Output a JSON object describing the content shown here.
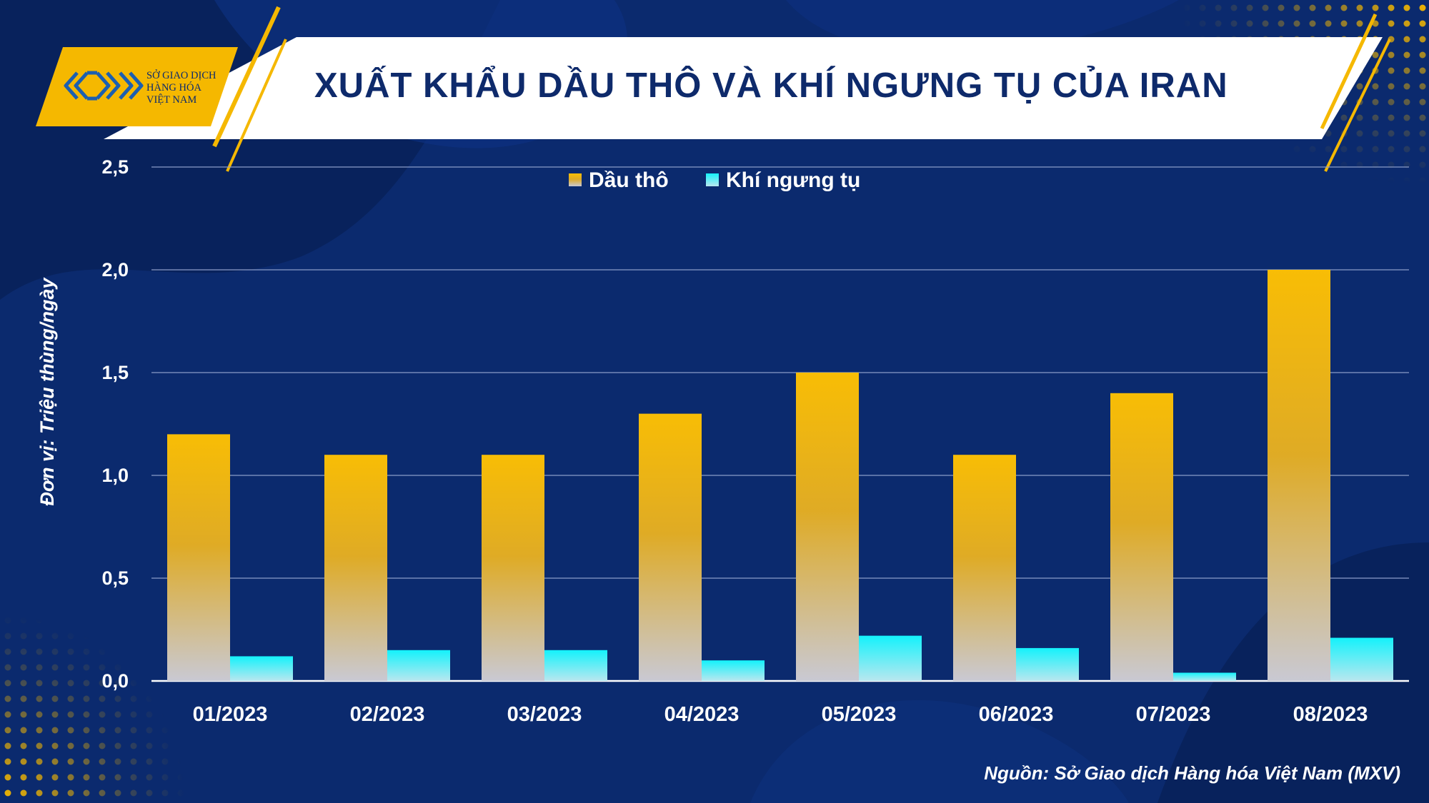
{
  "header": {
    "logo_lines": [
      "SỞ GIAO DỊCH",
      "HÀNG HÓA",
      "VIỆT NAM"
    ],
    "title": "XUẤT KHẨU DẦU THÔ VÀ KHÍ NGƯNG TỤ CỦA IRAN"
  },
  "colors": {
    "background": "#0b2a6e",
    "accent_gold": "#f5b800",
    "crude": "#f6bd06",
    "condensate": "#18f0f8",
    "title_text": "#0e2a6b"
  },
  "chart_data": {
    "type": "bar",
    "title": "XUẤT KHẨU DẦU THÔ VÀ KHÍ NGƯNG TỤ CỦA IRAN",
    "ylabel": "Đơn vị: Triệu thùng/ngày",
    "xlabel": "",
    "categories": [
      "01/2023",
      "02/2023",
      "03/2023",
      "04/2023",
      "05/2023",
      "06/2023",
      "07/2023",
      "08/2023"
    ],
    "series": [
      {
        "name": "Dầu thô",
        "color": "#f6bd06",
        "values": [
          1.2,
          1.1,
          1.1,
          1.3,
          1.5,
          1.1,
          1.4,
          2.0
        ]
      },
      {
        "name": "Khí ngưng tụ",
        "color": "#18f0f8",
        "values": [
          0.12,
          0.15,
          0.15,
          0.1,
          0.22,
          0.16,
          0.04,
          0.21
        ]
      }
    ],
    "ylim": [
      0,
      2.5
    ],
    "yticks": [
      "0,0",
      "0,5",
      "1,0",
      "1,5",
      "2,0",
      "2,5"
    ],
    "grid": true,
    "legend_position": "top-center"
  },
  "source": "Nguồn: Sở Giao dịch Hàng hóa Việt Nam (MXV)"
}
